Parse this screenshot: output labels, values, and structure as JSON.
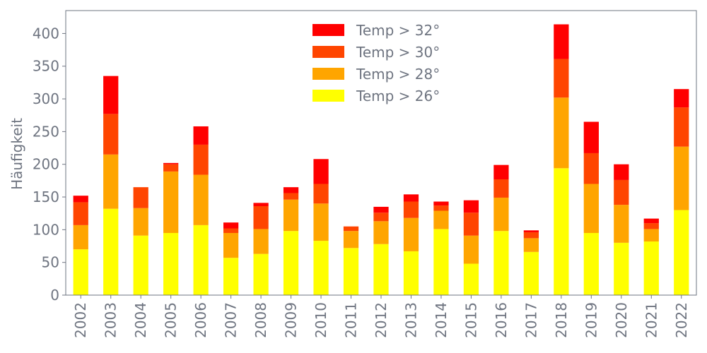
{
  "chart_data": {
    "type": "bar",
    "stacked": true,
    "categories": [
      "2002",
      "2003",
      "2004",
      "2005",
      "2006",
      "2007",
      "2008",
      "2009",
      "2010",
      "2011",
      "2012",
      "2013",
      "2014",
      "2015",
      "2016",
      "2017",
      "2018",
      "2019",
      "2020",
      "2021",
      "2022"
    ],
    "series": [
      {
        "name": "Temp > 26°",
        "color": "#ffff00",
        "values": [
          70,
          132,
          91,
          95,
          107,
          57,
          63,
          98,
          83,
          72,
          78,
          67,
          101,
          48,
          98,
          66,
          194,
          95,
          80,
          82,
          130
        ]
      },
      {
        "name": "Temp > 28°",
        "color": "#ffa500",
        "values": [
          37,
          83,
          42,
          94,
          77,
          38,
          38,
          48,
          57,
          26,
          35,
          51,
          28,
          43,
          51,
          21,
          108,
          75,
          58,
          19,
          97
        ]
      },
      {
        "name": "Temp > 30°",
        "color": "#ff4500",
        "values": [
          35,
          62,
          32,
          11,
          46,
          7,
          35,
          10,
          30,
          7,
          13,
          25,
          8,
          35,
          28,
          9,
          59,
          47,
          38,
          9,
          60
        ]
      },
      {
        "name": "Temp > 32°",
        "color": "#ff0000",
        "values": [
          10,
          58,
          0,
          2,
          28,
          9,
          5,
          9,
          38,
          0,
          9,
          11,
          6,
          19,
          22,
          3,
          53,
          48,
          24,
          7,
          28
        ]
      }
    ],
    "ylabel": "Häufigkeit",
    "xlabel": "",
    "ylim": [
      0,
      435
    ],
    "yticks": [
      0,
      50,
      100,
      150,
      200,
      250,
      300,
      350,
      400
    ],
    "legend_position": "top-center",
    "legend_order": [
      "Temp > 32°",
      "Temp > 30°",
      "Temp > 28°",
      "Temp > 26°"
    ],
    "grid": false
  }
}
